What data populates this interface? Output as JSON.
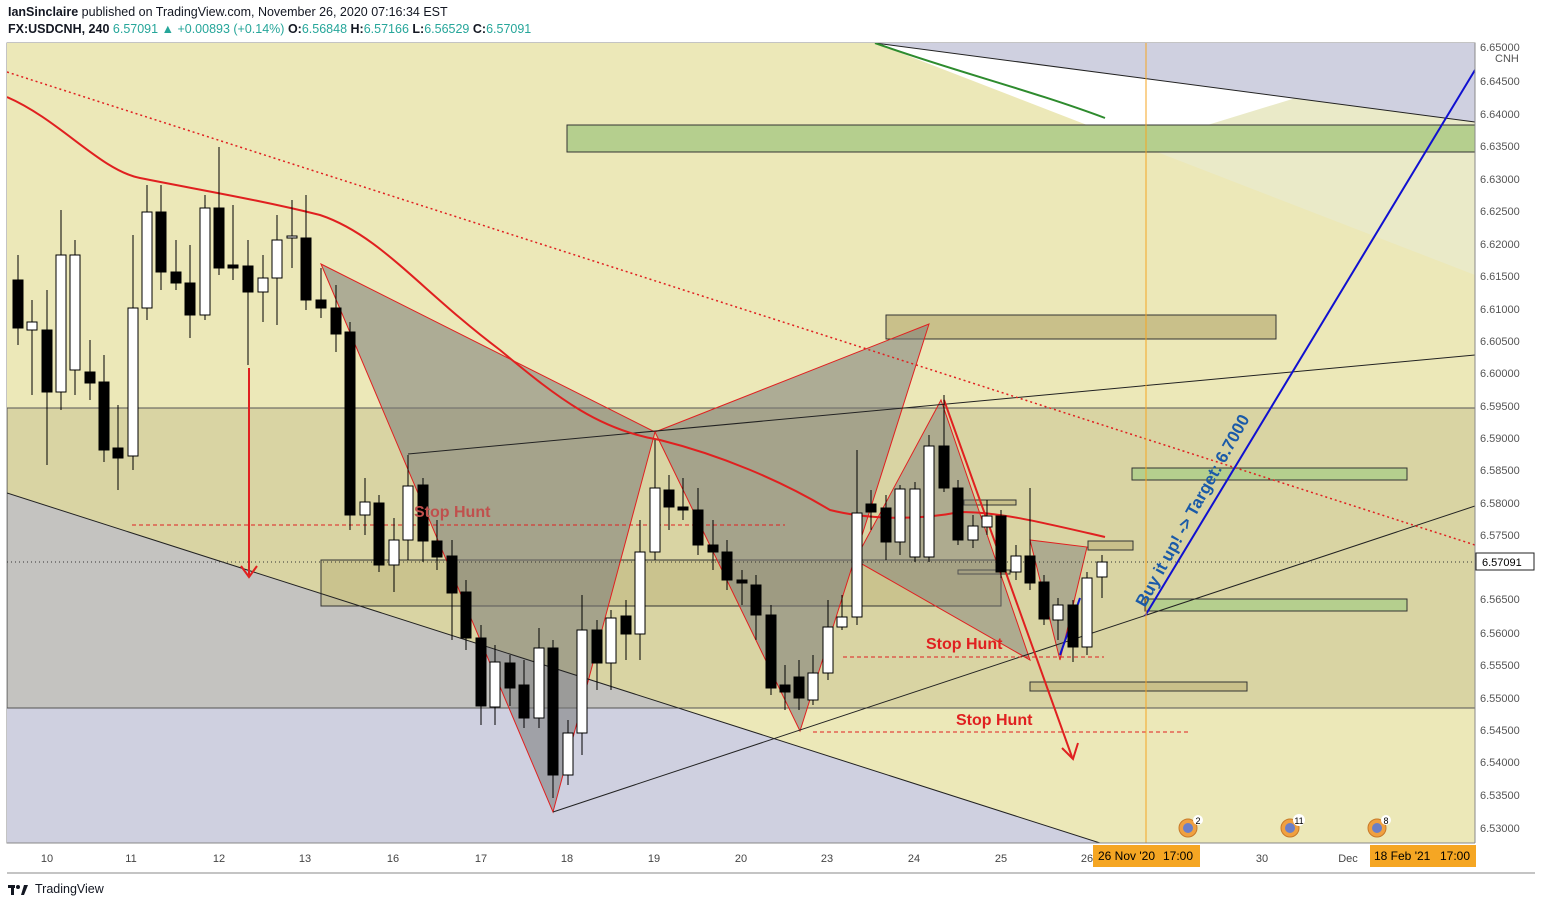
{
  "header": {
    "author": "IanSinclaire",
    "published_text": "published on TradingView.com, November 26, 2020 07:16:34 EST",
    "symbol": "FX:USDCNH, 240",
    "last": "6.57091",
    "change_arrow": "▲",
    "change": "+0.00893 (+0.14%)",
    "o_label": "O:",
    "o_value": "6.56848",
    "h_label": "H:",
    "h_value": "6.57166",
    "l_label": "L:",
    "l_value": "6.56529",
    "c_label": "C:",
    "c_value": "6.57091"
  },
  "price_axis": {
    "currency": "CNH",
    "ticks": [
      "6.65000",
      "6.64500",
      "6.64000",
      "6.63500",
      "6.63000",
      "6.62500",
      "6.62000",
      "6.61500",
      "6.61000",
      "6.60500",
      "6.60000",
      "6.59500",
      "6.59000",
      "6.58500",
      "6.58000",
      "6.57500",
      "6.56500",
      "6.56000",
      "6.55500",
      "6.55000",
      "6.54500",
      "6.54000",
      "6.53500",
      "6.53000"
    ],
    "current_price": "6.57091"
  },
  "time_axis": {
    "ticks": [
      "10",
      "11",
      "12",
      "13",
      "16",
      "17",
      "18",
      "19",
      "20",
      "23",
      "24",
      "25",
      "26",
      "30",
      "Dec"
    ],
    "current_label": "26 Nov '20",
    "current_time": "17:00",
    "future_label": "18 Feb '21",
    "future_time": "17:00"
  },
  "annotations": {
    "stop_hunt_1": "Stop Hunt",
    "stop_hunt_2": "Stop Hunt",
    "stop_hunt_3": "Stop Hunt",
    "target": "Buy it up! -> Target: 6.7000"
  },
  "events": [
    {
      "icon": "us-flag-event-icon",
      "count": "2"
    },
    {
      "icon": "us-flag-event-icon",
      "count": "11"
    },
    {
      "icon": "us-flag-event-icon",
      "count": "8"
    }
  ],
  "footer": {
    "brand": "TradingView"
  },
  "colors": {
    "bull_candle": "#ffffff",
    "bear_candle": "#000000",
    "ma_red": "#e02020",
    "ma_green": "#2e8b2e",
    "target_line": "#1010d0",
    "vertical_marker": "#f5a623",
    "zone_green": "#b5cf8e"
  }
}
